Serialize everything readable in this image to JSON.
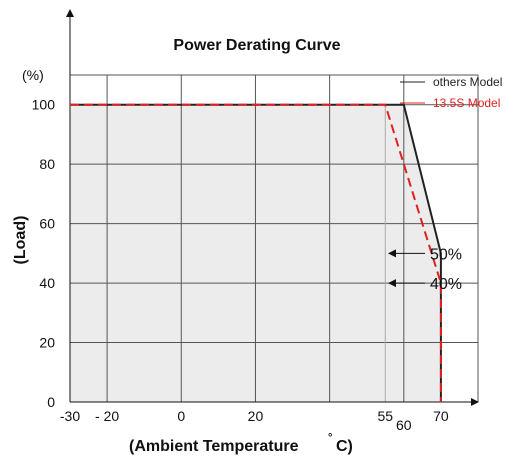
{
  "chart_data": {
    "type": "line",
    "title": "Power Derating Curve",
    "xlabel": "(Ambient Temperature",
    "xlabel_unit": "°C)",
    "ylabel": "(Load)",
    "yunit_label": "(%)",
    "xlim": [
      -30,
      80
    ],
    "ylim": [
      0,
      110
    ],
    "x_tick_labels": [
      {
        "label": "-30",
        "x": -30
      },
      {
        "label": "- 20",
        "x": -20
      },
      {
        "label": "0",
        "x": 0
      },
      {
        "label": "20",
        "x": 20
      },
      {
        "label": "55",
        "x": 55
      },
      {
        "label": "60",
        "x": 60
      },
      {
        "label": "70",
        "x": 70
      }
    ],
    "y_ticks": [
      0,
      20,
      40,
      60,
      80,
      100
    ],
    "grid": true,
    "legend_position": "top-right",
    "series": [
      {
        "name": "others Model",
        "color": "#222222",
        "style": "solid",
        "x": [
          -30,
          60,
          70,
          70
        ],
        "y": [
          100,
          100,
          50,
          0
        ]
      },
      {
        "name": "13.5S Model",
        "color": "#e02020",
        "style": "dashed",
        "x": [
          -30,
          55,
          70,
          70
        ],
        "y": [
          100,
          100,
          40,
          0
        ]
      }
    ],
    "annotations": [
      {
        "text": "50%",
        "y": 50
      },
      {
        "text": "40%",
        "y": 40
      }
    ]
  }
}
